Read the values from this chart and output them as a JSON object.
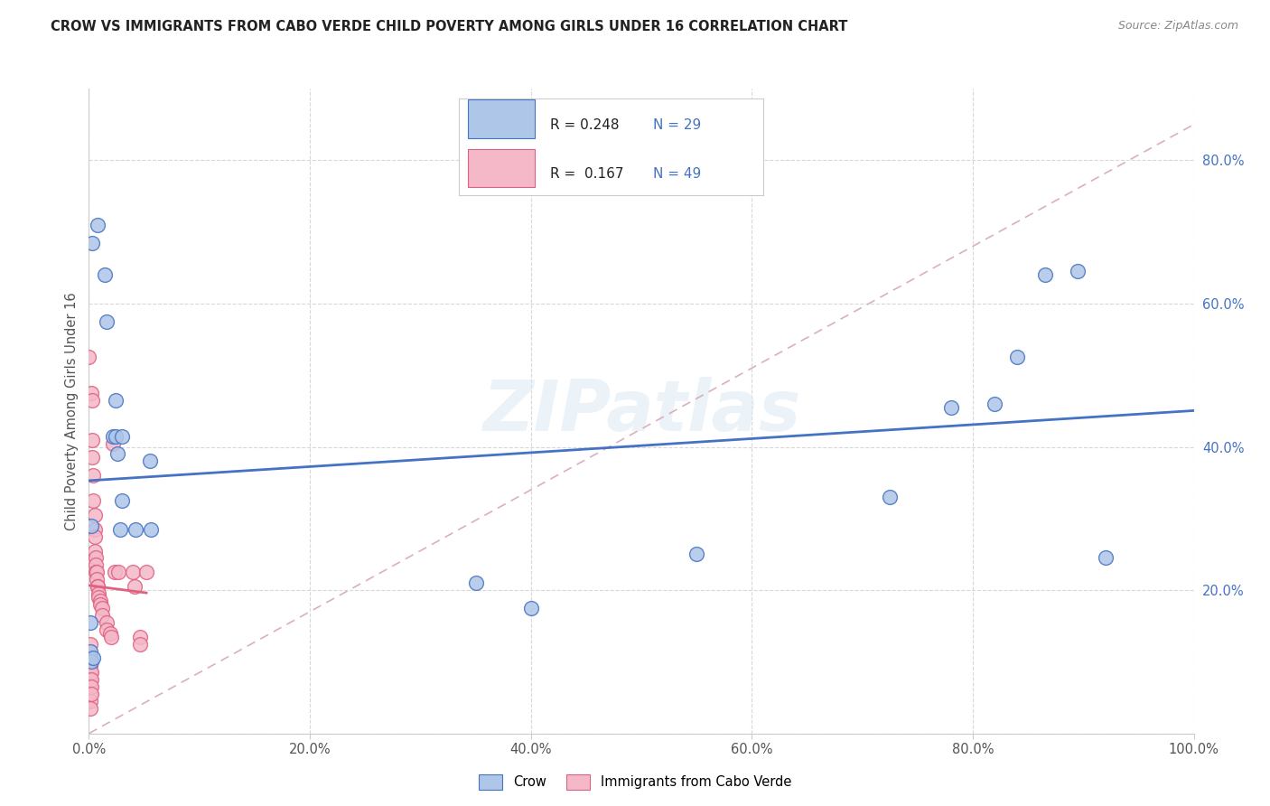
{
  "title": "CROW VS IMMIGRANTS FROM CABO VERDE CHILD POVERTY AMONG GIRLS UNDER 16 CORRELATION CHART",
  "source": "Source: ZipAtlas.com",
  "ylabel": "Child Poverty Among Girls Under 16",
  "watermark": "ZIPatlas",
  "crow_R": "0.248",
  "crow_N": "29",
  "cabo_R": "0.167",
  "cabo_N": "49",
  "crow_color": "#aec6e8",
  "cabo_color": "#f4b8c8",
  "crow_line_color": "#4472c4",
  "cabo_line_color": "#e06080",
  "diagonal_color": "#dbb0be",
  "crow_points": [
    [
      0.008,
      0.71
    ],
    [
      0.003,
      0.685
    ],
    [
      0.014,
      0.64
    ],
    [
      0.016,
      0.575
    ],
    [
      0.024,
      0.465
    ],
    [
      0.022,
      0.415
    ],
    [
      0.024,
      0.415
    ],
    [
      0.03,
      0.415
    ],
    [
      0.026,
      0.39
    ],
    [
      0.03,
      0.325
    ],
    [
      0.028,
      0.285
    ],
    [
      0.042,
      0.285
    ],
    [
      0.055,
      0.38
    ],
    [
      0.056,
      0.285
    ],
    [
      0.35,
      0.21
    ],
    [
      0.4,
      0.175
    ],
    [
      0.55,
      0.25
    ],
    [
      0.725,
      0.33
    ],
    [
      0.78,
      0.455
    ],
    [
      0.82,
      0.46
    ],
    [
      0.84,
      0.525
    ],
    [
      0.865,
      0.64
    ],
    [
      0.895,
      0.645
    ],
    [
      0.92,
      0.245
    ],
    [
      0.002,
      0.29
    ],
    [
      0.001,
      0.155
    ],
    [
      0.001,
      0.115
    ],
    [
      0.002,
      0.1
    ],
    [
      0.004,
      0.105
    ]
  ],
  "cabo_points": [
    [
      0.0,
      0.525
    ],
    [
      0.002,
      0.475
    ],
    [
      0.003,
      0.465
    ],
    [
      0.003,
      0.41
    ],
    [
      0.003,
      0.385
    ],
    [
      0.004,
      0.36
    ],
    [
      0.004,
      0.325
    ],
    [
      0.005,
      0.305
    ],
    [
      0.005,
      0.285
    ],
    [
      0.005,
      0.275
    ],
    [
      0.005,
      0.255
    ],
    [
      0.006,
      0.245
    ],
    [
      0.006,
      0.235
    ],
    [
      0.006,
      0.225
    ],
    [
      0.007,
      0.225
    ],
    [
      0.007,
      0.215
    ],
    [
      0.008,
      0.205
    ],
    [
      0.008,
      0.205
    ],
    [
      0.009,
      0.195
    ],
    [
      0.009,
      0.19
    ],
    [
      0.01,
      0.185
    ],
    [
      0.01,
      0.18
    ],
    [
      0.012,
      0.175
    ],
    [
      0.012,
      0.165
    ],
    [
      0.016,
      0.155
    ],
    [
      0.016,
      0.145
    ],
    [
      0.019,
      0.14
    ],
    [
      0.02,
      0.135
    ],
    [
      0.022,
      0.405
    ],
    [
      0.023,
      0.225
    ],
    [
      0.027,
      0.225
    ],
    [
      0.04,
      0.225
    ],
    [
      0.041,
      0.205
    ],
    [
      0.046,
      0.135
    ],
    [
      0.046,
      0.125
    ],
    [
      0.052,
      0.225
    ],
    [
      0.001,
      0.125
    ],
    [
      0.001,
      0.105
    ],
    [
      0.001,
      0.095
    ],
    [
      0.001,
      0.085
    ],
    [
      0.001,
      0.075
    ],
    [
      0.001,
      0.065
    ],
    [
      0.001,
      0.055
    ],
    [
      0.001,
      0.045
    ],
    [
      0.001,
      0.035
    ],
    [
      0.002,
      0.085
    ],
    [
      0.002,
      0.075
    ],
    [
      0.002,
      0.065
    ],
    [
      0.002,
      0.055
    ]
  ],
  "xlim": [
    0.0,
    1.0
  ],
  "ylim": [
    0.0,
    0.9
  ],
  "background_color": "#ffffff",
  "grid_color": "#d8d8d8"
}
